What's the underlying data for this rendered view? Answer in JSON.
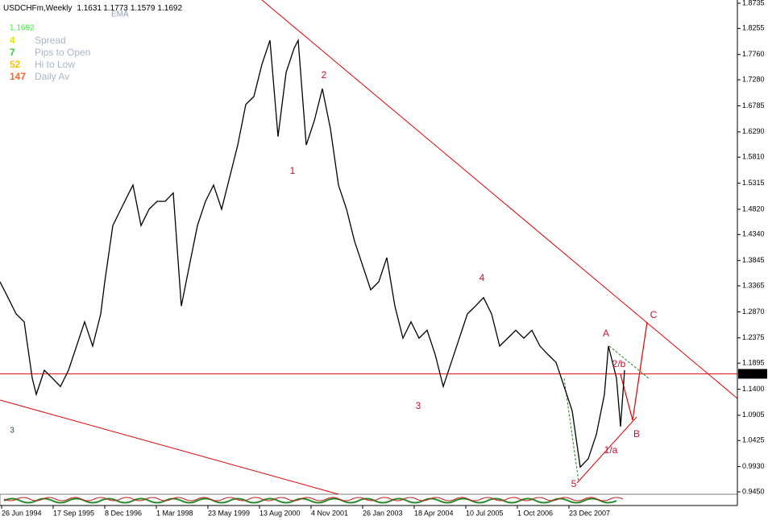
{
  "chart_data": {
    "type": "line",
    "title": "USDCHFm,Weekly",
    "ohlc": [
      1.1631,
      1.1773,
      1.1579,
      1.1692
    ],
    "indicator": "EMA",
    "info_panel": [
      {
        "value": 4,
        "label": "Spread",
        "color": "#e6e600"
      },
      {
        "value": 7,
        "label": "Pips to Open",
        "color": "#33cc33"
      },
      {
        "value": 52,
        "label": "Hi to Low",
        "color": "#ffbf00"
      },
      {
        "value": 147,
        "label": "Daily Av",
        "color": "#ff6633"
      }
    ],
    "wave_labels": [
      "1",
      "2",
      "3",
      "4",
      "5",
      "1/a",
      "2/b",
      "A",
      "B",
      "C",
      "3"
    ],
    "color": "#000000",
    "x": [
      -2,
      8,
      18,
      28,
      38,
      43,
      53,
      63,
      73,
      83,
      93,
      103,
      113,
      123,
      128,
      138,
      148,
      158,
      163,
      173,
      183,
      193,
      203,
      213,
      223,
      233,
      243,
      253,
      263,
      273,
      283,
      293,
      303,
      313,
      323,
      333,
      343,
      353,
      363,
      368,
      378,
      388,
      398,
      408,
      418,
      428,
      438,
      448,
      458,
      468,
      478,
      488,
      498,
      508,
      518,
      528,
      538,
      548,
      558,
      568,
      578,
      588,
      598,
      608,
      618,
      628,
      638,
      648,
      658,
      668,
      678,
      688,
      698,
      708,
      718,
      728,
      738,
      748,
      753,
      763,
      768,
      773
    ],
    "values": [
      1.344,
      1.314,
      1.283,
      1.268,
      1.161,
      1.13,
      1.176,
      1.161,
      1.145,
      1.176,
      1.222,
      1.268,
      1.222,
      1.283,
      1.344,
      1.451,
      1.482,
      1.513,
      1.528,
      1.451,
      1.482,
      1.497,
      1.497,
      1.513,
      1.298,
      1.375,
      1.451,
      1.497,
      1.528,
      1.482,
      1.543,
      1.604,
      1.681,
      1.696,
      1.757,
      1.803,
      1.62,
      1.742,
      1.788,
      1.803,
      1.604,
      1.65,
      1.711,
      1.635,
      1.528,
      1.482,
      1.421,
      1.375,
      1.329,
      1.344,
      1.39,
      1.298,
      1.237,
      1.268,
      1.237,
      1.252,
      1.206,
      1.145,
      1.191,
      1.237,
      1.283,
      1.298,
      1.314,
      1.283,
      1.222,
      1.237,
      1.252,
      1.237,
      1.252,
      1.222,
      1.206,
      1.191,
      1.145,
      1.099,
      0.992,
      1.008,
      1.054,
      1.13,
      1.222,
      1.161,
      1.069,
      1.176
    ],
    "xlim": [
      -2,
      913
    ],
    "xticks": [
      {
        "value": 0,
        "label": "26 Jun 1994"
      },
      {
        "value": 64,
        "label": "17 Sep 1995"
      },
      {
        "value": 128,
        "label": "8 Dec 1996"
      },
      {
        "value": 192,
        "label": "1 Mar 1998"
      },
      {
        "value": 256,
        "label": "23 May 1999"
      },
      {
        "value": 320,
        "label": "13 Aug 2000"
      },
      {
        "value": 384,
        "label": "4 Nov 2001"
      },
      {
        "value": 448,
        "label": "26 Jan 2003"
      },
      {
        "value": 512,
        "label": "18 Apr 2004"
      },
      {
        "value": 576,
        "label": "10 Jul 2005"
      },
      {
        "value": 640,
        "label": "1 Oct 2006"
      },
      {
        "value": 704,
        "label": "23 Dec 2007"
      }
    ],
    "ylim": [
      0.9404,
      1.8796
    ],
    "yticks": [
      {
        "value": 1.8735,
        "label": "1.8735"
      },
      {
        "value": 1.8255,
        "label": "1.8255"
      },
      {
        "value": 1.776,
        "label": "1.7760"
      },
      {
        "value": 1.728,
        "label": "1.7280"
      },
      {
        "value": 1.6785,
        "label": "1.6785"
      },
      {
        "value": 1.629,
        "label": "1.6290"
      },
      {
        "value": 1.581,
        "label": "1.5810"
      },
      {
        "value": 1.5315,
        "label": "1.5315"
      },
      {
        "value": 1.482,
        "label": "1.4820"
      },
      {
        "value": 1.434,
        "label": "1.4340"
      },
      {
        "value": 1.3845,
        "label": "1.3845"
      },
      {
        "value": 1.3365,
        "label": "1.3365"
      },
      {
        "value": 1.287,
        "label": "1.2870"
      },
      {
        "value": 1.2375,
        "label": "1.2375"
      },
      {
        "value": 1.1895,
        "label": "1.1895"
      },
      {
        "value": 1.14,
        "label": "1.1400"
      },
      {
        "value": 1.0905,
        "label": "1.0905"
      },
      {
        "value": 1.0425,
        "label": "1.0425"
      },
      {
        "value": 0.993,
        "label": "0.9930"
      },
      {
        "value": 0.945,
        "label": "0.9450"
      }
    ]
  }
}
